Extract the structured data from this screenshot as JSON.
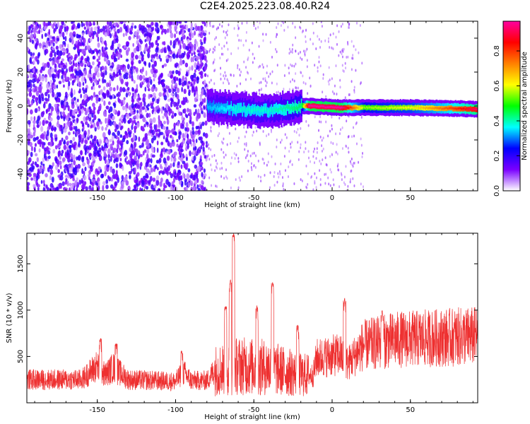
{
  "title": "C2E4.2025.223.08.40.R24",
  "chart_data": [
    {
      "type": "heatmap",
      "xlabel": "Height of straight line (km)",
      "ylabel": "Frequency (Hz)",
      "xlim": [
        -195,
        93
      ],
      "ylim": [
        -50,
        50
      ],
      "xticks": [
        -150,
        -100,
        -50,
        0,
        50
      ],
      "yticks": [
        -40,
        -20,
        0,
        20,
        40
      ],
      "colorbar": {
        "label": "Normalized spectral amplitude",
        "range": [
          0,
          0.97
        ],
        "ticks": [
          "0.0",
          "0.2",
          "0.4",
          "0.6",
          "0.8"
        ],
        "colors": [
          "#ffffff",
          "#7a00ff",
          "#0000ff",
          "#00ffff",
          "#00ff00",
          "#ffff00",
          "#ff8000",
          "#ff0000",
          "#ff00a0"
        ]
      },
      "noise_region": {
        "x": [
          -195,
          -80
        ],
        "amplitude": 0.15
      },
      "signal_track": [
        {
          "x": -80,
          "y": 0,
          "amplitude": 0.3
        },
        {
          "x": -60,
          "y": -2,
          "amplitude": 0.35
        },
        {
          "x": -40,
          "y": -3,
          "amplitude": 0.35
        },
        {
          "x": -20,
          "y": 0,
          "amplitude": 0.4
        },
        {
          "x": -15,
          "y": 0,
          "amplitude": 0.9
        },
        {
          "x": 5,
          "y": -1,
          "amplitude": 0.9
        },
        {
          "x": 20,
          "y": -1,
          "amplitude": 0.5
        },
        {
          "x": 50,
          "y": -1,
          "amplitude": 0.55
        },
        {
          "x": 80,
          "y": -1.5,
          "amplitude": 0.75
        },
        {
          "x": 93,
          "y": -2,
          "amplitude": 0.85
        }
      ]
    },
    {
      "type": "line",
      "xlabel": "Height of straight line (km)",
      "ylabel": "SNR (10 * v/v)",
      "xlim": [
        -195,
        93
      ],
      "ylim": [
        0,
        1830
      ],
      "xticks": [
        -150,
        -100,
        -50,
        0,
        50
      ],
      "yticks": [
        500,
        1000,
        1500
      ],
      "series": [
        {
          "color": "#ee3030",
          "baseline": [
            {
              "x": -195,
              "y": 250
            },
            {
              "x": -160,
              "y": 250
            },
            {
              "x": -150,
              "y": 400
            },
            {
              "x": -145,
              "y": 300
            },
            {
              "x": -140,
              "y": 380
            },
            {
              "x": -130,
              "y": 250
            },
            {
              "x": -100,
              "y": 230
            },
            {
              "x": -95,
              "y": 330
            },
            {
              "x": -90,
              "y": 240
            },
            {
              "x": -80,
              "y": 240
            },
            {
              "x": -75,
              "y": 350
            },
            {
              "x": -60,
              "y": 400
            },
            {
              "x": -40,
              "y": 380
            },
            {
              "x": -20,
              "y": 300
            },
            {
              "x": -12,
              "y": 300
            },
            {
              "x": -10,
              "y": 480
            },
            {
              "x": 5,
              "y": 520
            },
            {
              "x": 10,
              "y": 420
            },
            {
              "x": 20,
              "y": 620
            },
            {
              "x": 40,
              "y": 680
            },
            {
              "x": 93,
              "y": 720
            }
          ],
          "peaks": [
            {
              "x": -148,
              "y": 700
            },
            {
              "x": -138,
              "y": 640
            },
            {
              "x": -96,
              "y": 560
            },
            {
              "x": -68,
              "y": 1050
            },
            {
              "x": -65,
              "y": 1330
            },
            {
              "x": -63,
              "y": 1830
            },
            {
              "x": -48,
              "y": 1050
            },
            {
              "x": -38,
              "y": 1300
            },
            {
              "x": -22,
              "y": 840
            },
            {
              "x": 8,
              "y": 1130
            },
            {
              "x": 32,
              "y": 1000
            }
          ]
        }
      ]
    }
  ]
}
